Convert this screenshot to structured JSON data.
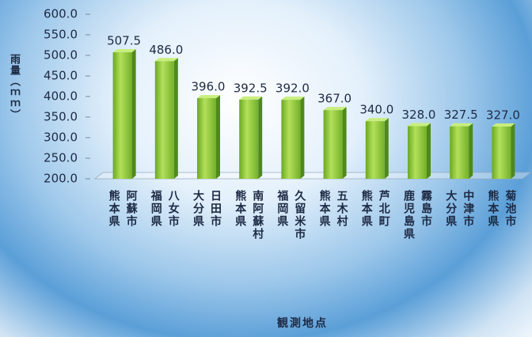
{
  "chart_data": {
    "type": "bar",
    "y_label": "雨量（ｍｍ）",
    "x_label": "観測地点",
    "categories": [
      "熊本県\n阿蘇市",
      "福岡県\n八女市",
      "大分県\n日田市",
      "熊本県\n南阿蘇村",
      "福岡県\n久留米市",
      "熊本県\n五木村",
      "熊本県\n芦北町",
      "鹿児島県\n霧島市",
      "大分県\n中津市",
      "熊本県\n菊池市"
    ],
    "values": [
      507.5,
      486.0,
      396.0,
      392.5,
      392.0,
      367.0,
      340.0,
      328.0,
      327.5,
      327.0
    ],
    "value_labels": [
      "507.5",
      "486.0",
      "396.0",
      "392.5",
      "392.0",
      "367.0",
      "340.0",
      "328.0",
      "327.5",
      "327.0"
    ],
    "color": "#8ccc3a",
    "ylim": [
      200,
      600
    ],
    "yticks": [
      {
        "value": 200,
        "label": "200.0"
      },
      {
        "value": 250,
        "label": "250.0"
      },
      {
        "value": 300,
        "label": "300.0"
      },
      {
        "value": 350,
        "label": "350.0"
      },
      {
        "value": 400,
        "label": "400.0"
      },
      {
        "value": 450,
        "label": "450.0"
      },
      {
        "value": 500,
        "label": "500.0"
      },
      {
        "value": 550,
        "label": "550.0"
      },
      {
        "value": 600,
        "label": "600.0"
      }
    ]
  }
}
